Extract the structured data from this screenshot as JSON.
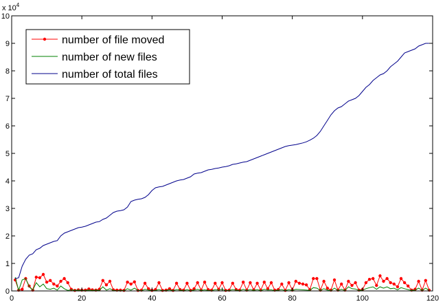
{
  "chart_data": {
    "type": "line",
    "title": "",
    "xlabel": "",
    "ylabel": "",
    "xlim": [
      0,
      120
    ],
    "ylim": [
      0,
      100000
    ],
    "y_scale_note": "x 10",
    "y_scale_exponent": "4",
    "x_ticks": [
      0,
      20,
      40,
      60,
      80,
      100,
      120
    ],
    "x_tick_labels": [
      "0",
      "20",
      "40",
      "60",
      "80",
      "100",
      "120"
    ],
    "y_ticks": [
      0,
      10000,
      20000,
      30000,
      40000,
      50000,
      60000,
      70000,
      80000,
      90000,
      100000
    ],
    "y_tick_labels": [
      "0",
      "1",
      "2",
      "3",
      "4",
      "5",
      "6",
      "7",
      "8",
      "9",
      "10"
    ],
    "grid": false,
    "legend_position": "top-left",
    "series": [
      {
        "name": "number of file moved",
        "color": "#ff0000",
        "marker": "dot",
        "x": [
          1,
          2,
          3,
          4,
          5,
          6,
          7,
          8,
          9,
          10,
          11,
          12,
          13,
          14,
          15,
          16,
          17,
          18,
          19,
          20,
          21,
          22,
          23,
          24,
          25,
          26,
          27,
          28,
          29,
          30,
          31,
          32,
          33,
          34,
          35,
          36,
          37,
          38,
          39,
          40,
          41,
          42,
          43,
          44,
          45,
          46,
          47,
          48,
          49,
          50,
          51,
          52,
          53,
          54,
          55,
          56,
          57,
          58,
          59,
          60,
          61,
          62,
          63,
          64,
          65,
          66,
          67,
          68,
          69,
          70,
          71,
          72,
          73,
          74,
          75,
          76,
          77,
          78,
          79,
          80,
          81,
          82,
          83,
          84,
          85,
          86,
          87,
          88,
          89,
          90,
          91,
          92,
          93,
          94,
          95,
          96,
          97,
          98,
          99,
          100,
          101,
          102,
          103,
          104,
          105,
          106,
          107,
          108,
          109,
          110,
          111,
          112,
          113,
          114,
          115,
          116,
          117,
          118,
          119
        ],
        "values": [
          4000,
          300,
          600,
          4500,
          1800,
          300,
          5000,
          4800,
          6000,
          3200,
          3800,
          2500,
          1800,
          3500,
          4500,
          3000,
          600,
          200,
          400,
          300,
          300,
          700,
          400,
          300,
          600,
          3800,
          2200,
          3500,
          400,
          300,
          300,
          200,
          3200,
          2500,
          3300,
          200,
          300,
          2800,
          800,
          200,
          500,
          3000,
          200,
          300,
          800,
          200,
          2800,
          500,
          300,
          2800,
          200,
          800,
          3000,
          300,
          3200,
          500,
          300,
          2800,
          600,
          3000,
          200,
          300,
          2800,
          500,
          300,
          3200,
          300,
          3000,
          400,
          2800,
          300,
          3200,
          800,
          3000,
          300,
          500,
          2500,
          200,
          3000,
          300,
          3500,
          2800,
          2500,
          2200,
          500,
          4500,
          4500,
          300,
          3500,
          1000,
          300,
          4000,
          300,
          2500,
          300,
          3500,
          2000,
          3000,
          300,
          500,
          3000,
          4200,
          4500,
          2000,
          5500,
          3500,
          4500,
          3000,
          2500,
          1500,
          4500,
          3000,
          1800,
          300,
          600,
          3500,
          300,
          3800,
          300
        ]
      },
      {
        "name": "number of new files",
        "color": "#008000",
        "marker": "none",
        "x": [
          1,
          2,
          3,
          4,
          5,
          6,
          7,
          8,
          9,
          10,
          11,
          12,
          13,
          14,
          15,
          16,
          17,
          18,
          19,
          20,
          21,
          22,
          23,
          24,
          25,
          26,
          27,
          28,
          29,
          30,
          31,
          32,
          33,
          34,
          35,
          36,
          37,
          38,
          39,
          40,
          41,
          42,
          43,
          44,
          45,
          46,
          47,
          48,
          49,
          50,
          51,
          52,
          53,
          54,
          55,
          56,
          57,
          58,
          59,
          60,
          61,
          62,
          63,
          64,
          65,
          66,
          67,
          68,
          69,
          70,
          71,
          72,
          73,
          74,
          75,
          76,
          77,
          78,
          79,
          80,
          81,
          82,
          83,
          84,
          85,
          86,
          87,
          88,
          89,
          90,
          91,
          92,
          93,
          94,
          95,
          96,
          97,
          98,
          99,
          100,
          101,
          102,
          103,
          104,
          105,
          106,
          107,
          108,
          109,
          110,
          111,
          112,
          113,
          114,
          115,
          116,
          117,
          118,
          119
        ],
        "values": [
          5000,
          200,
          4000,
          4500,
          1500,
          300,
          3000,
          1500,
          2500,
          800,
          600,
          1000,
          300,
          1800,
          800,
          200,
          400,
          200,
          300,
          200,
          200,
          300,
          200,
          300,
          200,
          1500,
          300,
          800,
          200,
          100,
          200,
          100,
          800,
          300,
          1000,
          200,
          100,
          600,
          300,
          100,
          200,
          500,
          100,
          200,
          400,
          100,
          500,
          300,
          100,
          500,
          100,
          300,
          600,
          200,
          400,
          200,
          100,
          500,
          300,
          600,
          100,
          200,
          500,
          300,
          100,
          600,
          200,
          500,
          200,
          500,
          100,
          600,
          300,
          400,
          100,
          300,
          500,
          100,
          500,
          200,
          600,
          500,
          400,
          300,
          200,
          1200,
          1000,
          200,
          800,
          300,
          100,
          1000,
          200,
          600,
          200,
          1500,
          800,
          700,
          200,
          300,
          800,
          1200,
          1500,
          600,
          1500,
          1000,
          1500,
          800,
          1000,
          400,
          1200,
          800,
          500,
          200,
          300,
          1000,
          200,
          1000,
          200
        ]
      },
      {
        "name": "number of total files",
        "color": "#00008b",
        "marker": "none",
        "x": [
          1,
          2,
          3,
          4,
          5,
          6,
          7,
          8,
          9,
          10,
          11,
          12,
          13,
          14,
          15,
          16,
          17,
          18,
          19,
          20,
          21,
          22,
          23,
          24,
          25,
          26,
          27,
          28,
          29,
          30,
          31,
          32,
          33,
          34,
          35,
          36,
          37,
          38,
          39,
          40,
          41,
          42,
          43,
          44,
          45,
          46,
          47,
          48,
          49,
          50,
          51,
          52,
          53,
          54,
          55,
          56,
          57,
          58,
          59,
          60,
          61,
          62,
          63,
          64,
          65,
          66,
          67,
          68,
          69,
          70,
          71,
          72,
          73,
          74,
          75,
          76,
          77,
          78,
          79,
          80,
          81,
          82,
          83,
          84,
          85,
          86,
          87,
          88,
          89,
          90,
          91,
          92,
          93,
          94,
          95,
          96,
          97,
          98,
          99,
          100,
          101,
          102,
          103,
          104,
          105,
          106,
          107,
          108,
          109,
          110,
          111,
          112,
          113,
          114,
          115,
          116,
          117,
          118,
          119
        ],
        "values": [
          4500,
          4800,
          9000,
          11500,
          13000,
          13500,
          15000,
          15500,
          16500,
          17000,
          17500,
          18000,
          18300,
          20000,
          21000,
          21500,
          22000,
          22500,
          23000,
          23200,
          23500,
          24000,
          24500,
          25000,
          25200,
          26000,
          26500,
          27500,
          28500,
          29000,
          29200,
          29500,
          30500,
          32500,
          33000,
          33300,
          33500,
          34000,
          35000,
          36500,
          37500,
          37800,
          38000,
          38500,
          39000,
          39500,
          40000,
          40300,
          40500,
          41000,
          41500,
          42500,
          42800,
          43000,
          43500,
          44000,
          44200,
          44500,
          44700,
          45000,
          45200,
          45500,
          46000,
          46200,
          46500,
          46800,
          47000,
          47500,
          48000,
          48500,
          49000,
          49500,
          50000,
          50500,
          51000,
          51500,
          52000,
          52500,
          52800,
          53000,
          53200,
          53500,
          53800,
          54200,
          54800,
          55500,
          56500,
          58000,
          60000,
          62000,
          64000,
          65500,
          66500,
          67000,
          68000,
          69000,
          69500,
          70000,
          71000,
          72500,
          74000,
          75000,
          76500,
          77500,
          78500,
          79000,
          80000,
          81500,
          82500,
          83500,
          85000,
          86500,
          87000,
          87500,
          88000,
          89000,
          89500,
          90000,
          90000
        ]
      }
    ]
  }
}
